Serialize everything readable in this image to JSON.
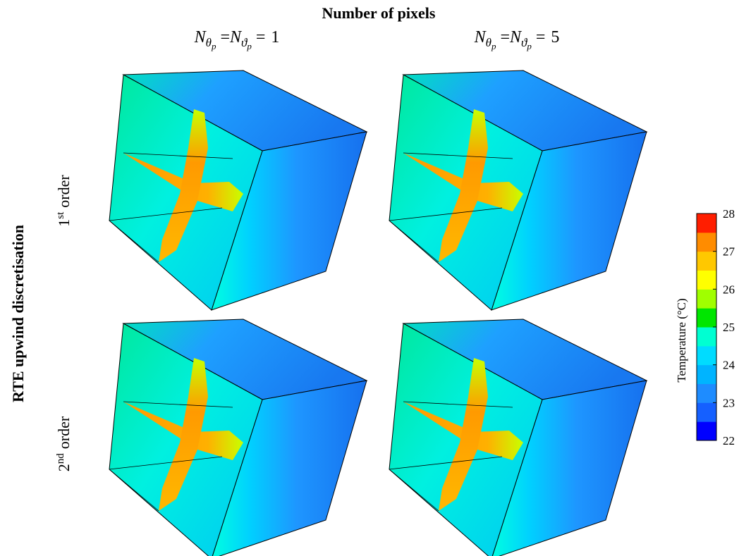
{
  "figure": {
    "title": "Number of pixels",
    "columns": [
      {
        "term1": {
          "base": "N",
          "sub": "θ",
          "subsub": "p"
        },
        "relation1": "=",
        "term2": {
          "base": "N",
          "sub": "ϑ",
          "subsub": "p"
        },
        "relation2": "=",
        "value": "1"
      },
      {
        "term1": {
          "base": "N",
          "sub": "θ",
          "subsub": "p"
        },
        "relation1": "=",
        "term2": {
          "base": "N",
          "sub": "ϑ",
          "subsub": "p"
        },
        "relation2": "=",
        "value": "5"
      }
    ],
    "row_group_title": "RTE upwind discretisation",
    "rows": [
      {
        "ordinal": "1",
        "suffix": "st",
        "word": "order"
      },
      {
        "ordinal": "2",
        "suffix": "nd",
        "word": "order"
      }
    ],
    "colorbar": {
      "label": "Temperature (°C)",
      "range": [
        22,
        28
      ],
      "ticks": [
        22,
        23,
        24,
        25,
        26,
        27,
        28
      ],
      "colors": [
        "#0000ff",
        "#1560ff",
        "#1e8cff",
        "#00b4ff",
        "#00dcff",
        "#00ffd2",
        "#00e600",
        "#a0ff00",
        "#ffff00",
        "#ffc800",
        "#ff8c00",
        "#ff1e00"
      ]
    }
  }
}
